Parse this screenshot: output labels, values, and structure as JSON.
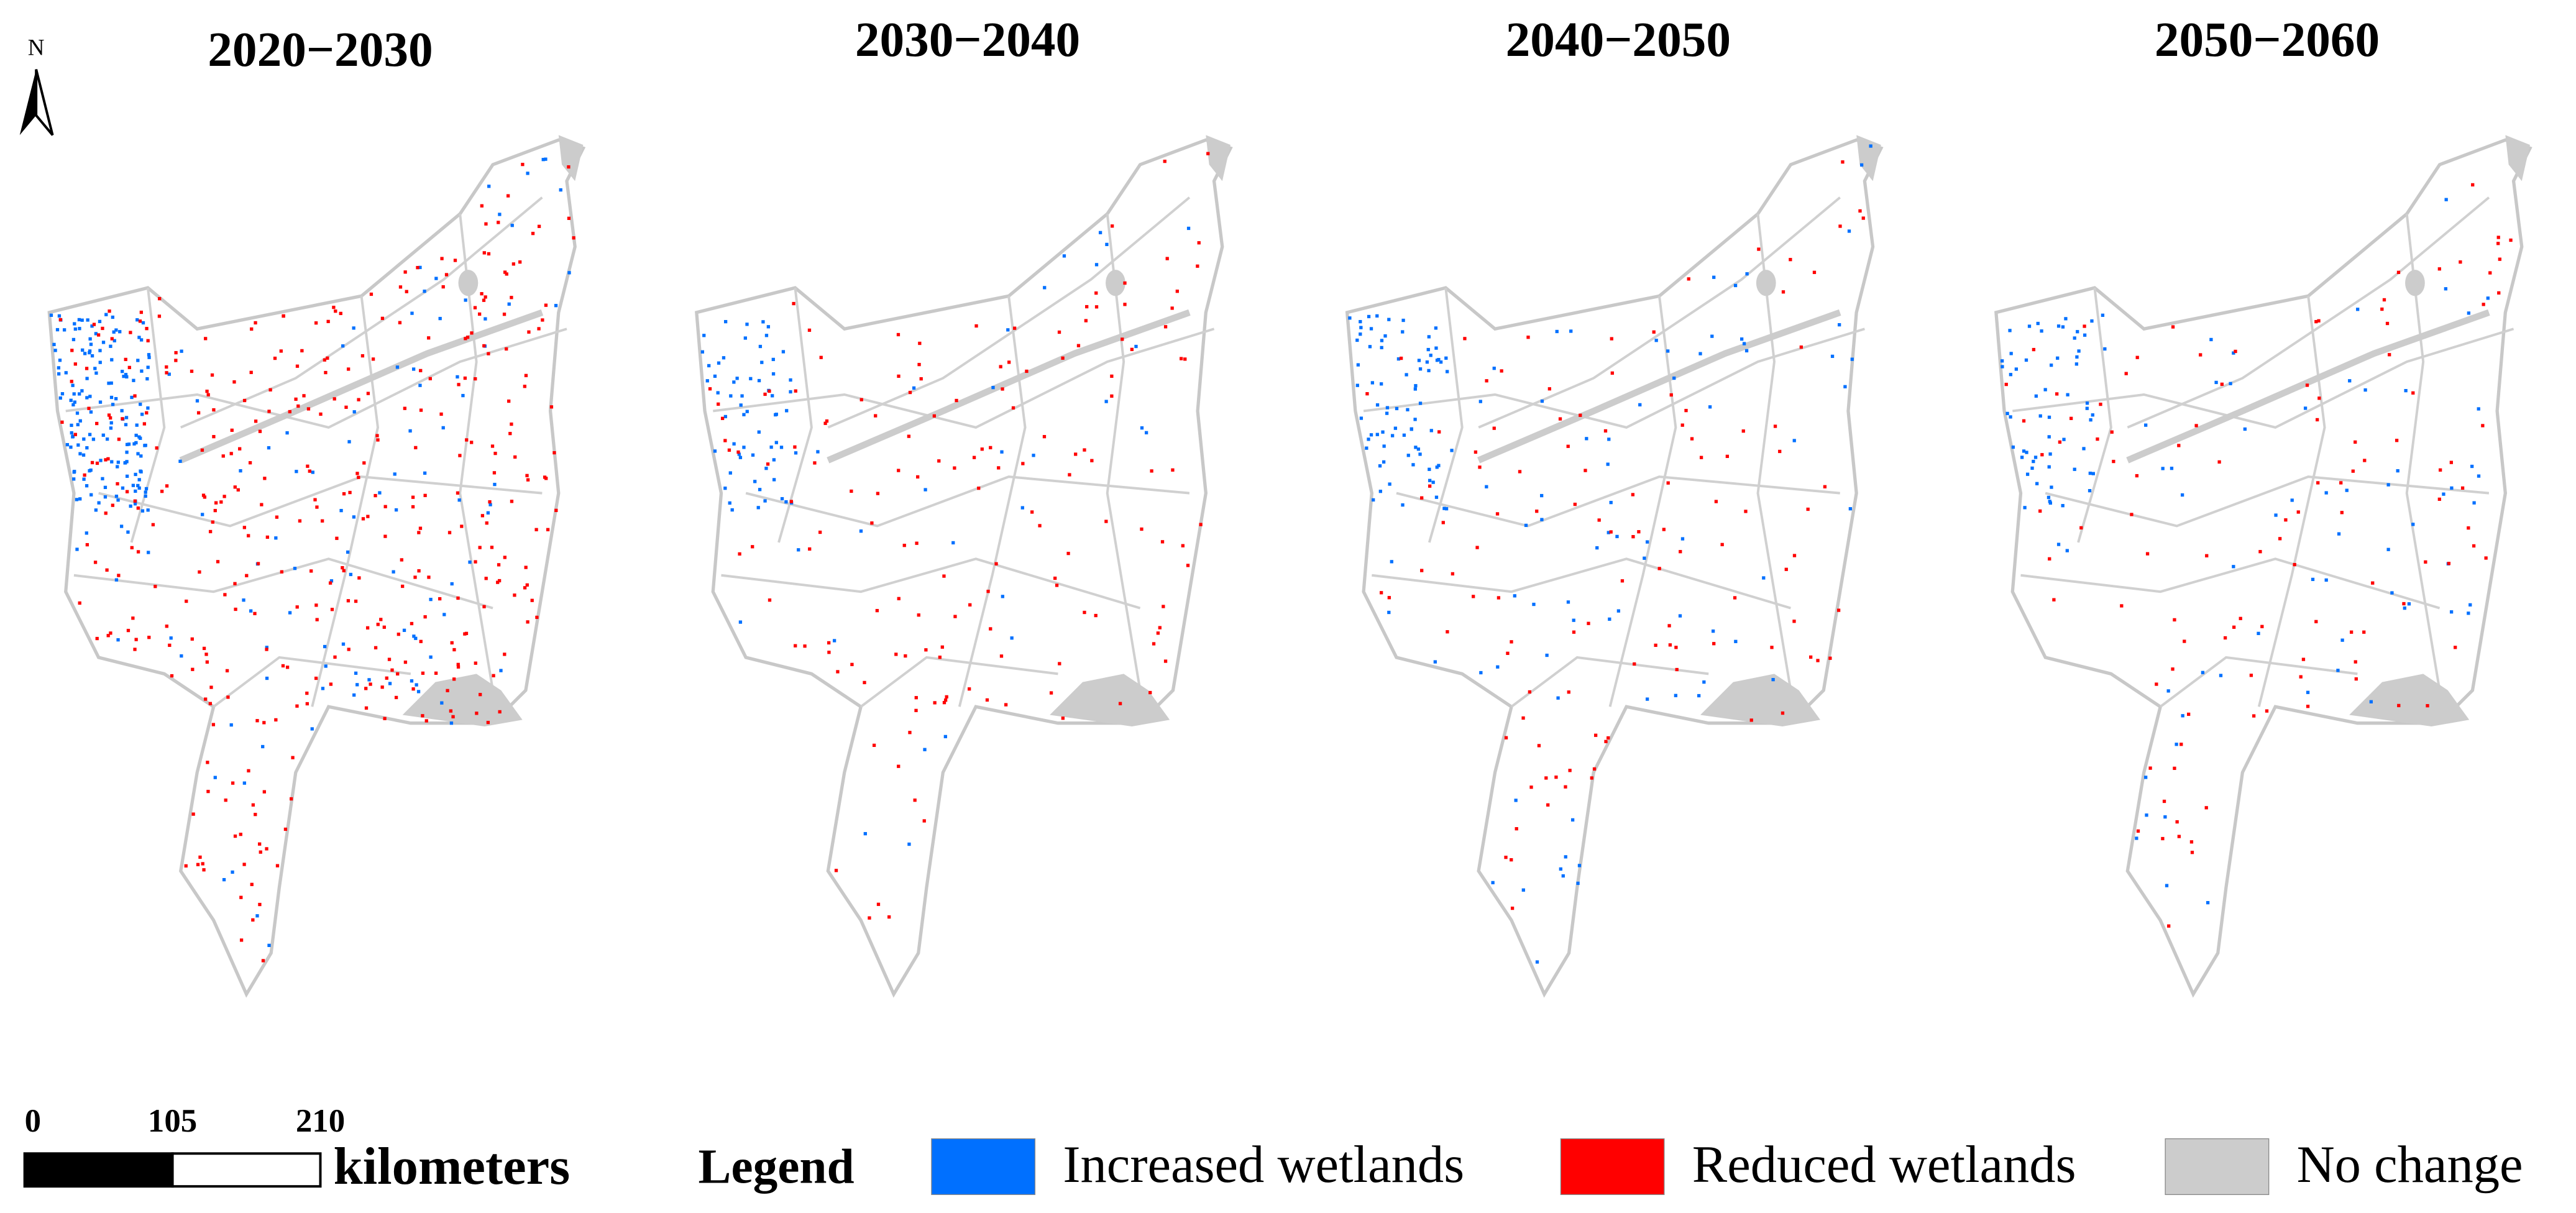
{
  "north_label": "N",
  "panels": [
    {
      "title": "2020−2030"
    },
    {
      "title": "2030−2040"
    },
    {
      "title": "2040−2050"
    },
    {
      "title": "2050−2060"
    }
  ],
  "scale_bar": {
    "ticks": [
      0,
      105,
      210
    ],
    "unit": "kilometers"
  },
  "legend": {
    "title": "Legend",
    "items": [
      {
        "label": "Increased wetlands",
        "color": "#0070ff"
      },
      {
        "label": "Reduced wetlands",
        "color": "#ff0000"
      },
      {
        "label": "No change",
        "color": "#cccccc"
      }
    ]
  }
}
